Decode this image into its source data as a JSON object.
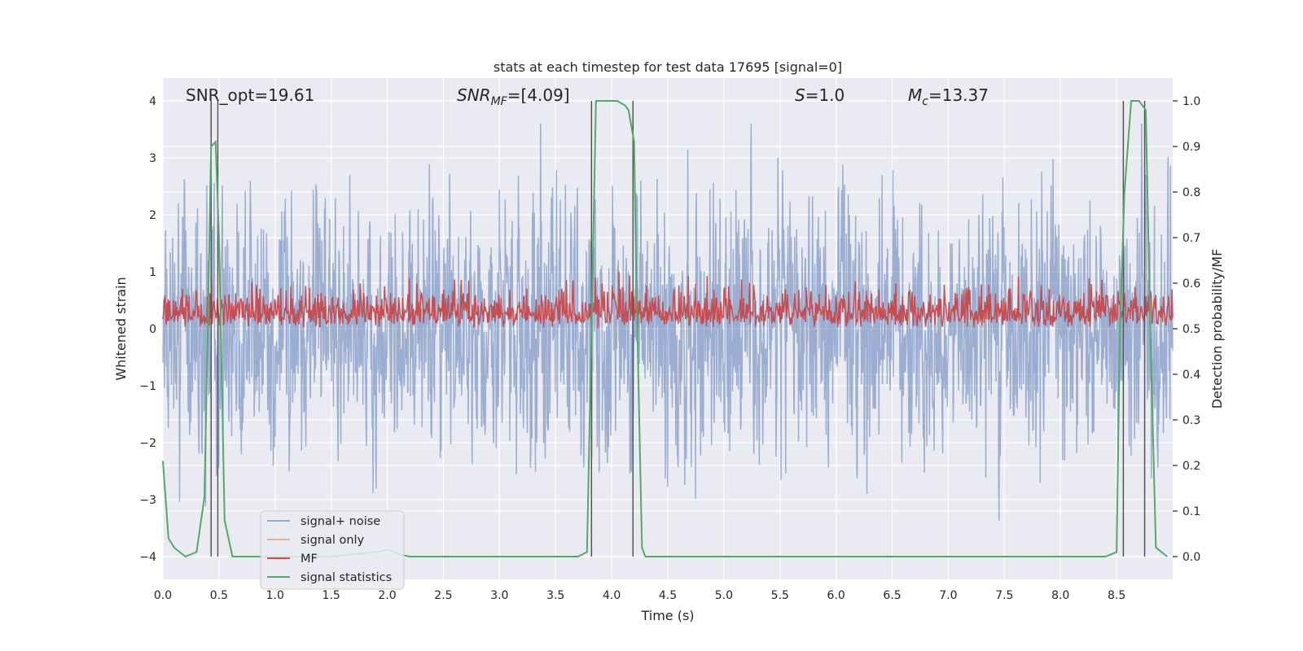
{
  "chart_data": {
    "type": "line",
    "title": "stats at each timestep for test data 17695 [signal=0]",
    "xlabel": "Time (s)",
    "ylabel": "Whitened strain",
    "y2label": "Detection probability/MF",
    "xlim": [
      0.0,
      9.0
    ],
    "ylim": [
      -4.4,
      4.4
    ],
    "y2lim": [
      -0.05,
      1.05
    ],
    "xticks": [
      "0.0",
      "0.5",
      "1.0",
      "1.5",
      "2.0",
      "2.5",
      "3.0",
      "3.5",
      "4.0",
      "4.5",
      "5.0",
      "5.5",
      "6.0",
      "6.5",
      "7.0",
      "7.5",
      "8.0",
      "8.5"
    ],
    "xtick_values": [
      0.0,
      0.5,
      1.0,
      1.5,
      2.0,
      2.5,
      3.0,
      3.5,
      4.0,
      4.5,
      5.0,
      5.5,
      6.0,
      6.5,
      7.0,
      7.5,
      8.0,
      8.5
    ],
    "yticks": [
      "4",
      "3",
      "2",
      "1",
      "0",
      "−1",
      "−2",
      "−3",
      "−4"
    ],
    "ytick_values": [
      4,
      3,
      2,
      1,
      0,
      -1,
      -2,
      -3,
      -4
    ],
    "y2ticks": [
      "1.0",
      "0.9",
      "0.8",
      "0.7",
      "0.6",
      "0.5",
      "0.4",
      "0.3",
      "0.2",
      "0.1",
      "0.0"
    ],
    "y2tick_values": [
      1.0,
      0.9,
      0.8,
      0.7,
      0.6,
      0.5,
      0.4,
      0.3,
      0.2,
      0.1,
      0.0
    ],
    "grid": true,
    "legend_position": "lower-left",
    "annotations": {
      "snr_opt": "SNR_opt=19.61",
      "snr_mf_main": "SNR",
      "snr_mf_sub": "MF",
      "snr_mf_rest": "=[4.09]",
      "s_main": "S",
      "s_rest": "=1.0",
      "mc_main": "M",
      "mc_sub": "c",
      "mc_rest": "=13.37"
    },
    "series": [
      {
        "name": "signal+ noise",
        "color": "#4c72b0",
        "alpha": 0.5,
        "description_values": {
          "x_range": [
            0.0,
            9.0
          ],
          "y_range": [
            -4.0,
            3.6
          ],
          "samples": "dense noise"
        }
      },
      {
        "name": "signal only",
        "color": "#dd8452",
        "values": []
      },
      {
        "name": "MF",
        "color": "#c44e52",
        "description_values": {
          "x_range": [
            0.0,
            9.0
          ],
          "y2_range": [
            0.5,
            0.63
          ]
        }
      },
      {
        "name": "signal statistics",
        "color": "#55a868",
        "x": [
          0.0,
          0.05,
          0.1,
          0.2,
          0.3,
          0.37,
          0.4,
          0.43,
          0.47,
          0.5,
          0.55,
          0.62,
          0.7,
          1.0,
          1.5,
          1.9,
          2.0,
          2.05,
          2.1,
          2.2,
          3.0,
          3.7,
          3.78,
          3.82,
          3.86,
          3.95,
          4.05,
          4.12,
          4.15,
          4.2,
          4.22,
          4.27,
          4.3,
          5.0,
          6.0,
          7.0,
          8.0,
          8.4,
          8.5,
          8.53,
          8.57,
          8.63,
          8.7,
          8.76,
          8.8,
          8.85,
          8.95
        ],
        "values": [
          0.21,
          0.04,
          0.02,
          0.0,
          0.01,
          0.13,
          0.5,
          0.9,
          0.91,
          0.7,
          0.08,
          0.0,
          0.0,
          0.0,
          0.0,
          0.01,
          0.015,
          0.013,
          0.005,
          0.0,
          0.0,
          0.0,
          0.01,
          0.5,
          1.0,
          1.0,
          1.0,
          0.99,
          0.98,
          0.91,
          0.6,
          0.02,
          0.0,
          0.0,
          0.0,
          0.0,
          0.0,
          0.0,
          0.01,
          0.5,
          0.8,
          1.0,
          1.0,
          0.98,
          0.5,
          0.02,
          0.0
        ]
      }
    ],
    "vertical_lines_x": [
      0.43,
      0.49,
      3.82,
      4.19,
      8.56,
      8.75
    ]
  }
}
